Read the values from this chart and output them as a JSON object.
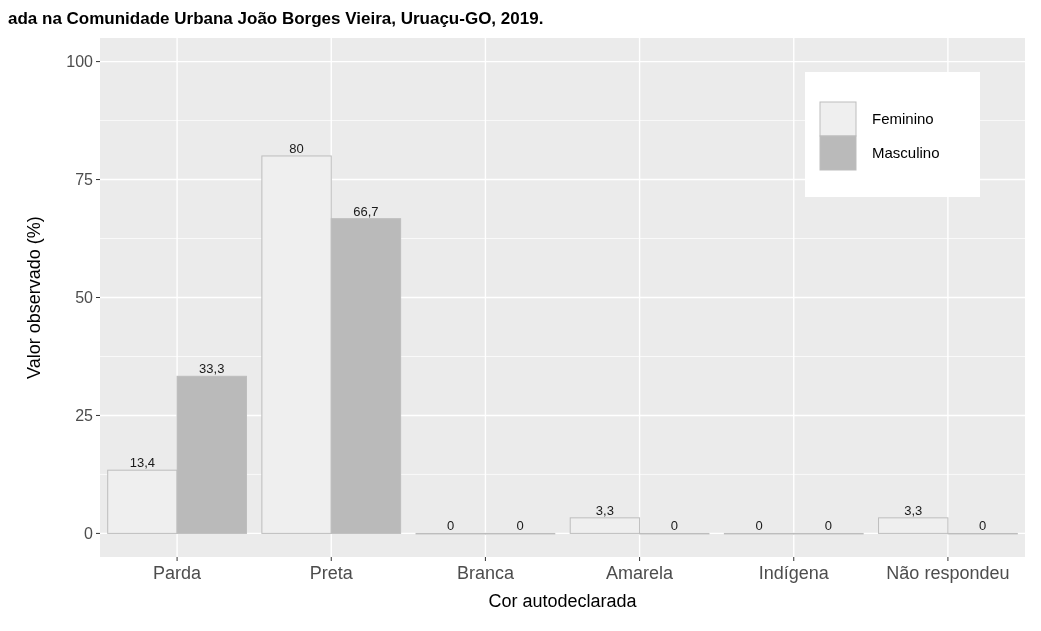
{
  "chart_data": {
    "type": "bar",
    "title": "ada na Comunidade Urbana João Borges Vieira, Uruaçu-GO, 2019.",
    "xlabel": "Cor autodeclarada",
    "ylabel": "Valor observado (%)",
    "categories": [
      "Parda",
      "Preta",
      "Branca",
      "Amarela",
      "Indígena",
      "Não respondeu"
    ],
    "series": [
      {
        "name": "Feminino",
        "color": "#efefef",
        "values": [
          13.4,
          80,
          0,
          3.3,
          0,
          3.3
        ],
        "value_labels": [
          "13,4",
          "80",
          "0",
          "3,3",
          "0",
          "3,3"
        ]
      },
      {
        "name": "Masculino",
        "color": "#bababa",
        "values": [
          33.3,
          66.7,
          0,
          0,
          0,
          0
        ],
        "value_labels": [
          "33,3",
          "66,7",
          "0",
          "0",
          "0",
          "0"
        ]
      }
    ],
    "ylim": [
      -5,
      105
    ],
    "yticks": [
      0,
      25,
      50,
      75,
      100
    ],
    "grid": true,
    "legend": "top right"
  }
}
